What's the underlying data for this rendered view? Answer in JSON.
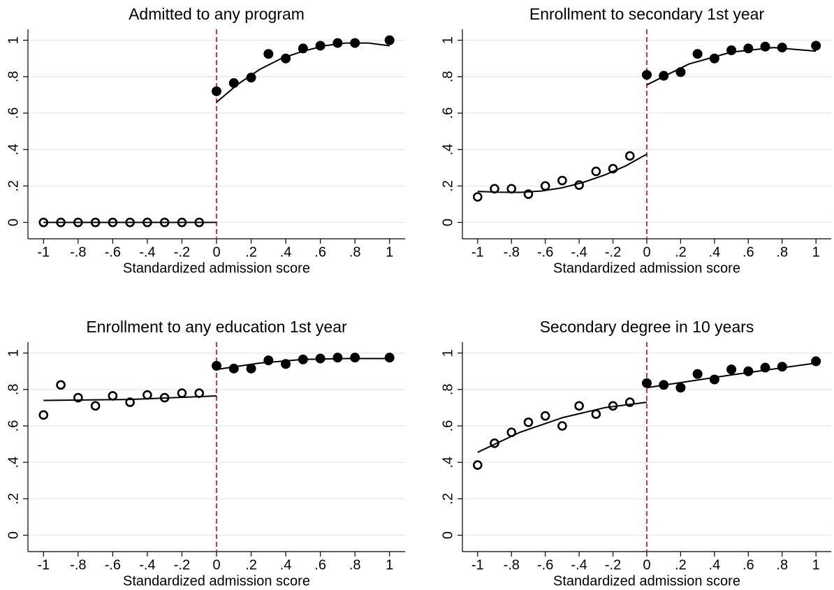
{
  "chart_data": [
    {
      "type": "scatter",
      "title": "Admitted to any program",
      "xlabel": "Standardized admission score",
      "xlim": [
        -1.09,
        1.09
      ],
      "ylim": [
        -0.09,
        1.06
      ],
      "grid": true,
      "cutoff": 0,
      "cutoff_color": "#e0304f",
      "xticks": [
        -1,
        {
          "value": -0.8,
          "label": "-.8"
        },
        {
          "value": -0.6,
          "label": "-.6"
        },
        {
          "value": -0.4,
          "label": "-.4"
        },
        {
          "value": -0.2,
          "label": "-.2"
        },
        0,
        {
          "value": 0.2,
          "label": ".2"
        },
        {
          "value": 0.4,
          "label": ".4"
        },
        {
          "value": 0.6,
          "label": ".6"
        },
        {
          "value": 0.8,
          "label": ".8"
        },
        1
      ],
      "yticks": [
        0,
        {
          "value": 0.2,
          "label": ".2"
        },
        {
          "value": 0.4,
          "label": ".4"
        },
        {
          "value": 0.6,
          "label": ".6"
        },
        {
          "value": 0.8,
          "label": ".8"
        },
        1
      ],
      "series": [
        {
          "style": "open",
          "color": "#000000",
          "x": [
            -1,
            -0.9,
            -0.8,
            -0.7,
            -0.6,
            -0.5,
            -0.4,
            -0.3,
            -0.2,
            -0.1
          ],
          "values": [
            0,
            0,
            0,
            0,
            0,
            0,
            0,
            0,
            0,
            0
          ]
        },
        {
          "style": "filled",
          "color": "#000000",
          "x": [
            0,
            0.1,
            0.2,
            0.3,
            0.4,
            0.5,
            0.6,
            0.7,
            0.8,
            1
          ],
          "values": [
            0.72,
            0.765,
            0.795,
            0.925,
            0.9,
            0.955,
            0.97,
            0.985,
            0.985,
            1.0
          ]
        },
        {
          "style": "line",
          "color": "#000000",
          "x": [
            -1,
            0
          ],
          "values": [
            0,
            0
          ]
        },
        {
          "style": "line",
          "color": "#000000",
          "x": [
            0,
            0.125,
            0.25,
            0.375,
            0.5,
            0.625,
            0.75,
            0.875,
            1
          ],
          "values": [
            0.66,
            0.76,
            0.84,
            0.9,
            0.94,
            0.97,
            0.985,
            0.985,
            0.97
          ]
        }
      ]
    },
    {
      "type": "scatter",
      "title": "Enrollment to secondary 1st year",
      "xlabel": "Standardized admission score",
      "xlim": [
        -1.09,
        1.09
      ],
      "ylim": [
        -0.09,
        1.06
      ],
      "grid": true,
      "cutoff": 0,
      "cutoff_color": "#e0304f",
      "xticks": [
        -1,
        {
          "value": -0.8,
          "label": "-.8"
        },
        {
          "value": -0.6,
          "label": "-.6"
        },
        {
          "value": -0.4,
          "label": "-.4"
        },
        {
          "value": -0.2,
          "label": "-.2"
        },
        0,
        {
          "value": 0.2,
          "label": ".2"
        },
        {
          "value": 0.4,
          "label": ".4"
        },
        {
          "value": 0.6,
          "label": ".6"
        },
        {
          "value": 0.8,
          "label": ".8"
        },
        1
      ],
      "yticks": [
        0,
        {
          "value": 0.2,
          "label": ".2"
        },
        {
          "value": 0.4,
          "label": ".4"
        },
        {
          "value": 0.6,
          "label": ".6"
        },
        {
          "value": 0.8,
          "label": ".8"
        },
        1
      ],
      "series": [
        {
          "style": "open",
          "color": "#000000",
          "x": [
            -1,
            -0.9,
            -0.8,
            -0.7,
            -0.6,
            -0.5,
            -0.4,
            -0.3,
            -0.2,
            -0.1
          ],
          "values": [
            0.14,
            0.185,
            0.185,
            0.155,
            0.2,
            0.23,
            0.205,
            0.28,
            0.295,
            0.365
          ]
        },
        {
          "style": "filled",
          "color": "#000000",
          "x": [
            0,
            0.1,
            0.2,
            0.3,
            0.4,
            0.5,
            0.6,
            0.7,
            0.8,
            1
          ],
          "values": [
            0.81,
            0.805,
            0.825,
            0.925,
            0.9,
            0.945,
            0.955,
            0.965,
            0.96,
            0.97
          ]
        },
        {
          "style": "line",
          "color": "#000000",
          "x": [
            -1,
            -0.875,
            -0.75,
            -0.625,
            -0.5,
            -0.375,
            -0.25,
            -0.125,
            0
          ],
          "values": [
            0.17,
            0.166,
            0.165,
            0.172,
            0.19,
            0.22,
            0.26,
            0.31,
            0.375
          ]
        },
        {
          "style": "line",
          "color": "#000000",
          "x": [
            0,
            0.25,
            0.5,
            0.75,
            1
          ],
          "values": [
            0.755,
            0.87,
            0.935,
            0.96,
            0.94
          ]
        }
      ]
    },
    {
      "type": "scatter",
      "title": "Enrollment to any education 1st year",
      "xlabel": "Standardized admission score",
      "xlim": [
        -1.09,
        1.09
      ],
      "ylim": [
        -0.09,
        1.06
      ],
      "grid": true,
      "cutoff": 0,
      "cutoff_color": "#e0304f",
      "xticks": [
        -1,
        {
          "value": -0.8,
          "label": "-.8"
        },
        {
          "value": -0.6,
          "label": "-.6"
        },
        {
          "value": -0.4,
          "label": "-.4"
        },
        {
          "value": -0.2,
          "label": "-.2"
        },
        0,
        {
          "value": 0.2,
          "label": ".2"
        },
        {
          "value": 0.4,
          "label": ".4"
        },
        {
          "value": 0.6,
          "label": ".6"
        },
        {
          "value": 0.8,
          "label": ".8"
        },
        1
      ],
      "yticks": [
        0,
        {
          "value": 0.2,
          "label": ".2"
        },
        {
          "value": 0.4,
          "label": ".4"
        },
        {
          "value": 0.6,
          "label": ".6"
        },
        {
          "value": 0.8,
          "label": ".8"
        },
        1
      ],
      "series": [
        {
          "style": "open",
          "color": "#000000",
          "x": [
            -1,
            -0.9,
            -0.8,
            -0.7,
            -0.6,
            -0.5,
            -0.4,
            -0.3,
            -0.2,
            -0.1
          ],
          "values": [
            0.66,
            0.825,
            0.755,
            0.71,
            0.765,
            0.73,
            0.77,
            0.755,
            0.78,
            0.78
          ]
        },
        {
          "style": "filled",
          "color": "#000000",
          "x": [
            0,
            0.1,
            0.2,
            0.3,
            0.4,
            0.5,
            0.6,
            0.7,
            0.8,
            1
          ],
          "values": [
            0.93,
            0.915,
            0.915,
            0.96,
            0.94,
            0.965,
            0.97,
            0.975,
            0.975,
            0.975
          ]
        },
        {
          "style": "line",
          "color": "#000000",
          "x": [
            -1,
            -0.5,
            0
          ],
          "values": [
            0.74,
            0.745,
            0.765
          ]
        },
        {
          "style": "line",
          "color": "#000000",
          "x": [
            0,
            0.25,
            0.5,
            0.75,
            1
          ],
          "values": [
            0.91,
            0.945,
            0.965,
            0.97,
            0.97
          ]
        }
      ]
    },
    {
      "type": "scatter",
      "title": "Secondary degree in 10 years",
      "xlabel": "Standardized admission score",
      "xlim": [
        -1.09,
        1.09
      ],
      "ylim": [
        -0.09,
        1.06
      ],
      "grid": true,
      "cutoff": 0,
      "cutoff_color": "#e0304f",
      "xticks": [
        -1,
        {
          "value": -0.8,
          "label": "-.8"
        },
        {
          "value": -0.6,
          "label": "-.6"
        },
        {
          "value": -0.4,
          "label": "-.4"
        },
        {
          "value": -0.2,
          "label": "-.2"
        },
        0,
        {
          "value": 0.2,
          "label": ".2"
        },
        {
          "value": 0.4,
          "label": ".4"
        },
        {
          "value": 0.6,
          "label": ".6"
        },
        {
          "value": 0.8,
          "label": ".8"
        },
        1
      ],
      "yticks": [
        0,
        {
          "value": 0.2,
          "label": ".2"
        },
        {
          "value": 0.4,
          "label": ".4"
        },
        {
          "value": 0.6,
          "label": ".6"
        },
        {
          "value": 0.8,
          "label": ".8"
        },
        1
      ],
      "series": [
        {
          "style": "open",
          "color": "#000000",
          "x": [
            -1,
            -0.9,
            -0.8,
            -0.7,
            -0.6,
            -0.5,
            -0.4,
            -0.3,
            -0.2,
            -0.1
          ],
          "values": [
            0.385,
            0.505,
            0.565,
            0.62,
            0.655,
            0.6,
            0.71,
            0.665,
            0.71,
            0.73
          ]
        },
        {
          "style": "filled",
          "color": "#000000",
          "x": [
            0,
            0.1,
            0.2,
            0.3,
            0.4,
            0.5,
            0.6,
            0.7,
            0.8,
            1
          ],
          "values": [
            0.835,
            0.825,
            0.81,
            0.885,
            0.855,
            0.91,
            0.9,
            0.92,
            0.925,
            0.955
          ]
        },
        {
          "style": "line",
          "color": "#000000",
          "x": [
            -1,
            -0.75,
            -0.5,
            -0.25,
            0
          ],
          "values": [
            0.455,
            0.565,
            0.645,
            0.7,
            0.73
          ]
        },
        {
          "style": "line",
          "color": "#000000",
          "x": [
            0,
            0.5,
            1
          ],
          "values": [
            0.81,
            0.88,
            0.945
          ]
        }
      ]
    }
  ]
}
